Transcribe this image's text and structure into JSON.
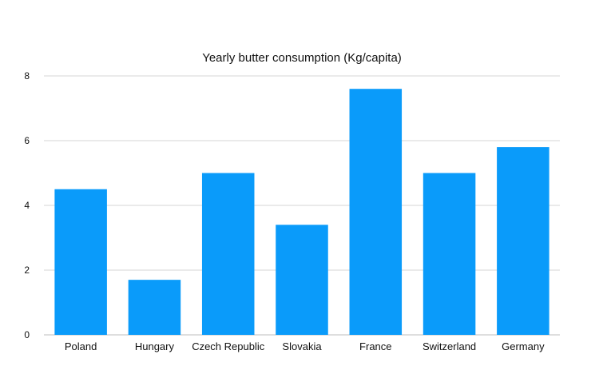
{
  "chart_data": {
    "type": "bar",
    "title": "Yearly butter consumption (Kg/capita)",
    "xlabel": "",
    "ylabel": "",
    "categories": [
      "Poland",
      "Hungary",
      "Czech Republic",
      "Slovakia",
      "France",
      "Switzerland",
      "Germany"
    ],
    "series": [
      {
        "values": [
          4.5,
          1.7,
          5.0,
          3.4,
          7.6,
          5.0,
          5.8
        ],
        "color": "#0a9bfa"
      }
    ],
    "ylim": [
      0,
      8
    ],
    "yticks": [
      "0",
      "2",
      "4",
      "6",
      "8"
    ],
    "grid": true,
    "legend": "none"
  }
}
